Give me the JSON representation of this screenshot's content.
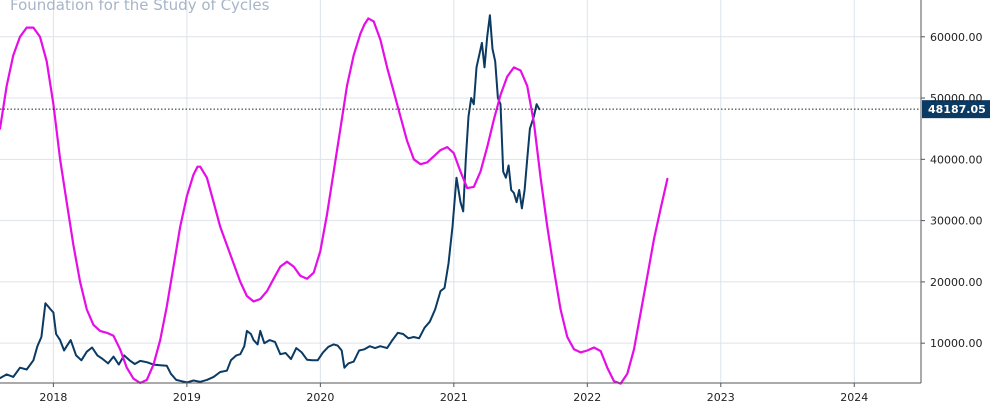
{
  "chart_data": {
    "type": "line",
    "title": "Foundation for the Study of Cycles",
    "x_tick_labels": [
      "2018",
      "2019",
      "2020",
      "2021",
      "2022",
      "2023",
      "2024"
    ],
    "y_tick_labels": [
      "10000.00",
      "20000.00",
      "30000.00",
      "40000.00",
      "50000.00",
      "60000.00"
    ],
    "xlim": [
      2017.6,
      2024.5
    ],
    "ylim": [
      3500,
      66000
    ],
    "y_axis_position": "right",
    "grid": true,
    "current_value": 48187.05,
    "current_value_label": "48187.05",
    "series": [
      {
        "color": "#0b3a63",
        "points": [
          [
            2017.6,
            4300
          ],
          [
            2017.65,
            4900
          ],
          [
            2017.7,
            4500
          ],
          [
            2017.75,
            6000
          ],
          [
            2017.8,
            5700
          ],
          [
            2017.85,
            7200
          ],
          [
            2017.88,
            9500
          ],
          [
            2017.91,
            11000
          ],
          [
            2017.94,
            16500
          ],
          [
            2017.96,
            16000
          ],
          [
            2017.98,
            15500
          ],
          [
            2018.0,
            15000
          ],
          [
            2018.02,
            11500
          ],
          [
            2018.05,
            10500
          ],
          [
            2018.08,
            8800
          ],
          [
            2018.1,
            9500
          ],
          [
            2018.13,
            10500
          ],
          [
            2018.17,
            8000
          ],
          [
            2018.21,
            7200
          ],
          [
            2018.25,
            8600
          ],
          [
            2018.29,
            9300
          ],
          [
            2018.33,
            8000
          ],
          [
            2018.37,
            7400
          ],
          [
            2018.41,
            6700
          ],
          [
            2018.45,
            7800
          ],
          [
            2018.49,
            6500
          ],
          [
            2018.53,
            8000
          ],
          [
            2018.57,
            7200
          ],
          [
            2018.61,
            6600
          ],
          [
            2018.65,
            7100
          ],
          [
            2018.7,
            6900
          ],
          [
            2018.75,
            6500
          ],
          [
            2018.8,
            6400
          ],
          [
            2018.85,
            6300
          ],
          [
            2018.88,
            5000
          ],
          [
            2018.92,
            4000
          ],
          [
            2018.96,
            3800
          ],
          [
            2019.0,
            3600
          ],
          [
            2019.05,
            3900
          ],
          [
            2019.1,
            3700
          ],
          [
            2019.15,
            4000
          ],
          [
            2019.2,
            4500
          ],
          [
            2019.25,
            5300
          ],
          [
            2019.3,
            5500
          ],
          [
            2019.33,
            7200
          ],
          [
            2019.37,
            8000
          ],
          [
            2019.4,
            8200
          ],
          [
            2019.43,
            9500
          ],
          [
            2019.45,
            12000
          ],
          [
            2019.48,
            11500
          ],
          [
            2019.5,
            10500
          ],
          [
            2019.53,
            9800
          ],
          [
            2019.55,
            12000
          ],
          [
            2019.58,
            10000
          ],
          [
            2019.62,
            10500
          ],
          [
            2019.66,
            10200
          ],
          [
            2019.7,
            8200
          ],
          [
            2019.74,
            8400
          ],
          [
            2019.78,
            7400
          ],
          [
            2019.82,
            9200
          ],
          [
            2019.86,
            8500
          ],
          [
            2019.9,
            7300
          ],
          [
            2019.94,
            7200
          ],
          [
            2019.98,
            7200
          ],
          [
            2020.02,
            8500
          ],
          [
            2020.06,
            9400
          ],
          [
            2020.1,
            9800
          ],
          [
            2020.13,
            9600
          ],
          [
            2020.16,
            8800
          ],
          [
            2020.18,
            6000
          ],
          [
            2020.21,
            6700
          ],
          [
            2020.25,
            7000
          ],
          [
            2020.29,
            8800
          ],
          [
            2020.33,
            9000
          ],
          [
            2020.37,
            9500
          ],
          [
            2020.41,
            9200
          ],
          [
            2020.45,
            9500
          ],
          [
            2020.5,
            9200
          ],
          [
            2020.54,
            10500
          ],
          [
            2020.58,
            11700
          ],
          [
            2020.62,
            11500
          ],
          [
            2020.66,
            10800
          ],
          [
            2020.7,
            11000
          ],
          [
            2020.74,
            10800
          ],
          [
            2020.78,
            12500
          ],
          [
            2020.82,
            13500
          ],
          [
            2020.86,
            15500
          ],
          [
            2020.9,
            18500
          ],
          [
            2020.93,
            19000
          ],
          [
            2020.96,
            23000
          ],
          [
            2020.99,
            29000
          ],
          [
            2021.02,
            37000
          ],
          [
            2021.05,
            33000
          ],
          [
            2021.07,
            31500
          ],
          [
            2021.09,
            40000
          ],
          [
            2021.11,
            47000
          ],
          [
            2021.13,
            50000
          ],
          [
            2021.15,
            49000
          ],
          [
            2021.17,
            55000
          ],
          [
            2021.19,
            57000
          ],
          [
            2021.21,
            59000
          ],
          [
            2021.23,
            55000
          ],
          [
            2021.25,
            60000
          ],
          [
            2021.27,
            63500
          ],
          [
            2021.29,
            58000
          ],
          [
            2021.31,
            56000
          ],
          [
            2021.33,
            50000
          ],
          [
            2021.35,
            49000
          ],
          [
            2021.37,
            38000
          ],
          [
            2021.39,
            37000
          ],
          [
            2021.41,
            39000
          ],
          [
            2021.43,
            35000
          ],
          [
            2021.45,
            34500
          ],
          [
            2021.47,
            33000
          ],
          [
            2021.49,
            35000
          ],
          [
            2021.51,
            32000
          ],
          [
            2021.53,
            35000
          ],
          [
            2021.55,
            40000
          ],
          [
            2021.57,
            45000
          ],
          [
            2021.6,
            47000
          ],
          [
            2021.62,
            49000
          ],
          [
            2021.64,
            48187
          ]
        ]
      },
      {
        "color": "#e60ee6",
        "points": [
          [
            2017.6,
            45000
          ],
          [
            2017.65,
            52000
          ],
          [
            2017.7,
            57000
          ],
          [
            2017.75,
            60000
          ],
          [
            2017.8,
            61500
          ],
          [
            2017.85,
            61500
          ],
          [
            2017.9,
            60000
          ],
          [
            2017.95,
            56000
          ],
          [
            2018.0,
            49000
          ],
          [
            2018.05,
            40000
          ],
          [
            2018.1,
            33000
          ],
          [
            2018.15,
            26000
          ],
          [
            2018.2,
            20000
          ],
          [
            2018.25,
            15500
          ],
          [
            2018.3,
            13000
          ],
          [
            2018.35,
            12000
          ],
          [
            2018.4,
            11700
          ],
          [
            2018.45,
            11200
          ],
          [
            2018.5,
            9000
          ],
          [
            2018.55,
            6000
          ],
          [
            2018.6,
            4200
          ],
          [
            2018.65,
            3500
          ],
          [
            2018.7,
            4000
          ],
          [
            2018.75,
            6500
          ],
          [
            2018.8,
            10500
          ],
          [
            2018.85,
            16000
          ],
          [
            2018.9,
            22500
          ],
          [
            2018.95,
            29000
          ],
          [
            2019.0,
            34000
          ],
          [
            2019.05,
            37500
          ],
          [
            2019.08,
            38800
          ],
          [
            2019.1,
            38800
          ],
          [
            2019.15,
            37000
          ],
          [
            2019.2,
            33000
          ],
          [
            2019.25,
            29000
          ],
          [
            2019.3,
            26000
          ],
          [
            2019.35,
            23000
          ],
          [
            2019.4,
            20000
          ],
          [
            2019.45,
            17700
          ],
          [
            2019.5,
            16800
          ],
          [
            2019.55,
            17200
          ],
          [
            2019.6,
            18500
          ],
          [
            2019.65,
            20500
          ],
          [
            2019.7,
            22500
          ],
          [
            2019.75,
            23300
          ],
          [
            2019.8,
            22500
          ],
          [
            2019.85,
            21000
          ],
          [
            2019.9,
            20500
          ],
          [
            2019.95,
            21500
          ],
          [
            2020.0,
            25000
          ],
          [
            2020.05,
            31000
          ],
          [
            2020.1,
            38000
          ],
          [
            2020.15,
            45000
          ],
          [
            2020.2,
            52000
          ],
          [
            2020.25,
            57000
          ],
          [
            2020.3,
            60500
          ],
          [
            2020.33,
            62000
          ],
          [
            2020.36,
            63000
          ],
          [
            2020.4,
            62500
          ],
          [
            2020.45,
            59500
          ],
          [
            2020.5,
            55000
          ],
          [
            2020.55,
            51000
          ],
          [
            2020.6,
            47000
          ],
          [
            2020.65,
            43000
          ],
          [
            2020.7,
            40000
          ],
          [
            2020.75,
            39200
          ],
          [
            2020.8,
            39500
          ],
          [
            2020.85,
            40500
          ],
          [
            2020.9,
            41500
          ],
          [
            2020.95,
            42000
          ],
          [
            2021.0,
            41000
          ],
          [
            2021.05,
            38000
          ],
          [
            2021.1,
            35300
          ],
          [
            2021.15,
            35500
          ],
          [
            2021.2,
            38000
          ],
          [
            2021.25,
            42000
          ],
          [
            2021.3,
            46500
          ],
          [
            2021.35,
            50500
          ],
          [
            2021.4,
            53500
          ],
          [
            2021.45,
            55000
          ],
          [
            2021.5,
            54500
          ],
          [
            2021.55,
            52000
          ],
          [
            2021.6,
            46000
          ],
          [
            2021.65,
            37000
          ],
          [
            2021.7,
            29000
          ],
          [
            2021.75,
            22000
          ],
          [
            2021.8,
            15500
          ],
          [
            2021.85,
            11000
          ],
          [
            2021.9,
            9000
          ],
          [
            2021.95,
            8500
          ],
          [
            2022.0,
            8800
          ],
          [
            2022.05,
            9300
          ],
          [
            2022.1,
            8700
          ],
          [
            2022.15,
            6000
          ],
          [
            2022.2,
            3800
          ],
          [
            2022.25,
            3400
          ],
          [
            2022.3,
            5000
          ],
          [
            2022.35,
            9000
          ],
          [
            2022.4,
            15000
          ],
          [
            2022.45,
            21000
          ],
          [
            2022.5,
            27000
          ],
          [
            2022.55,
            32000
          ],
          [
            2022.6,
            36800
          ]
        ]
      }
    ]
  }
}
